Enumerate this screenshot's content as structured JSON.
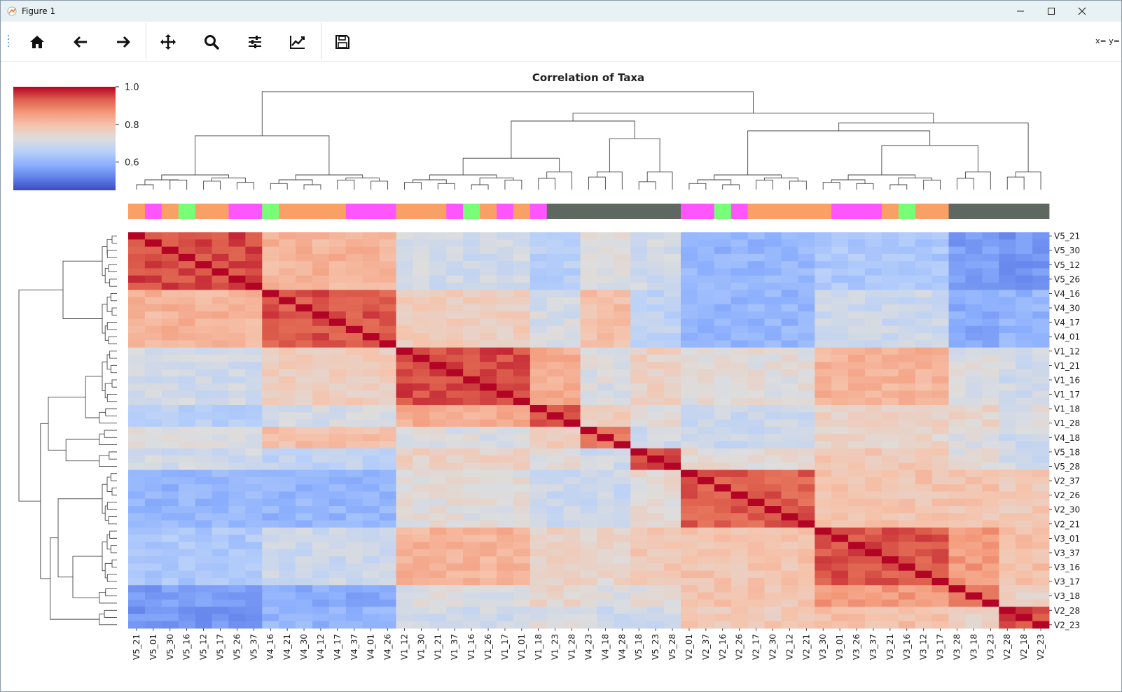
{
  "window": {
    "title": "Figure 1"
  },
  "toolbar": {
    "coord_readout": "x= y="
  },
  "icons": [
    "grip-icon",
    "home-icon",
    "back-arrow-icon",
    "forward-arrow-icon",
    "pan-icon",
    "zoom-icon",
    "configure-subplots-icon",
    "edit-axis-icon",
    "save-icon",
    "minimize-icon",
    "maximize-icon",
    "close-icon"
  ],
  "chart_data": {
    "type": "heatmap",
    "title": "Correlation of Taxa",
    "colormap": "coolwarm",
    "colorbar": {
      "ticks": [
        "1.0",
        "0.8",
        "0.6"
      ],
      "tick_values": [
        1.0,
        0.8,
        0.6
      ],
      "range": [
        0.45,
        1.0
      ]
    },
    "labels": [
      "V5_21",
      "V5_01",
      "V5_30",
      "V5_16",
      "V5_12",
      "V5_17",
      "V5_26",
      "V5_37",
      "V4_16",
      "V4_21",
      "V4_30",
      "V4_12",
      "V4_17",
      "V4_37",
      "V4_01",
      "V4_26",
      "V1_12",
      "V1_30",
      "V1_21",
      "V1_37",
      "V1_16",
      "V1_26",
      "V1_17",
      "V1_01",
      "V1_18",
      "V1_23",
      "V1_28",
      "V4_23",
      "V4_18",
      "V4_28",
      "V5_18",
      "V5_23",
      "V5_28",
      "V2_01",
      "V2_37",
      "V2_16",
      "V2_26",
      "V2_17",
      "V2_30",
      "V2_12",
      "V2_21",
      "V3_30",
      "V3_01",
      "V3_26",
      "V3_37",
      "V3_21",
      "V3_16",
      "V3_12",
      "V3_17",
      "V3_28",
      "V3_18",
      "V3_23",
      "V2_28",
      "V2_18",
      "V2_23"
    ],
    "row_tick_labels": [
      "V5_21",
      "V5_30",
      "V5_12",
      "V5_26",
      "V4_16",
      "V4_30",
      "V4_17",
      "V4_01",
      "V1_12",
      "V1_21",
      "V1_16",
      "V1_17",
      "V1_18",
      "V1_28",
      "V4_18",
      "V5_18",
      "V5_28",
      "V2_37",
      "V2_26",
      "V2_30",
      "V2_21",
      "V3_01",
      "V3_37",
      "V3_16",
      "V3_17",
      "V3_18",
      "V2_28",
      "V2_23"
    ],
    "column_color_bar": [
      "#f9a066",
      "#ff55ff",
      "#f9a066",
      "#77ff77",
      "#f9a066",
      "#f9a066",
      "#ff55ff",
      "#ff55ff",
      "#77ff77",
      "#f9a066",
      "#f9a066",
      "#f9a066",
      "#f9a066",
      "#ff55ff",
      "#ff55ff",
      "#ff55ff",
      "#f9a066",
      "#f9a066",
      "#f9a066",
      "#ff55ff",
      "#77ff77",
      "#f9a066",
      "#ff55ff",
      "#f9a066",
      "#ff55ff",
      "#5f6860",
      "#5f6860",
      "#5f6860",
      "#5f6860",
      "#5f6860",
      "#5f6860",
      "#5f6860",
      "#5f6860",
      "#ff55ff",
      "#ff55ff",
      "#77ff77",
      "#ff55ff",
      "#f9a066",
      "#f9a066",
      "#f9a066",
      "#f9a066",
      "#f9a066",
      "#ff55ff",
      "#ff55ff",
      "#ff55ff",
      "#f9a066",
      "#77ff77",
      "#f9a066",
      "#f9a066",
      "#5f6860",
      "#5f6860",
      "#5f6860",
      "#5f6860",
      "#5f6860",
      "#5f6860"
    ],
    "clusters": [
      {
        "members": "V5_21..V5_37",
        "start": 0,
        "size": 8
      },
      {
        "members": "V4_16..V4_26",
        "start": 8,
        "size": 8
      },
      {
        "members": "V1_12..V1_01",
        "start": 16,
        "size": 8
      },
      {
        "members": "V1_18..V1_28",
        "start": 24,
        "size": 3
      },
      {
        "members": "V4_23..V4_28",
        "start": 27,
        "size": 3
      },
      {
        "members": "V5_18..V5_28",
        "start": 30,
        "size": 3
      },
      {
        "members": "V2_01..V2_21",
        "start": 33,
        "size": 8
      },
      {
        "members": "V3_30..V3_17",
        "start": 41,
        "size": 8
      },
      {
        "members": "V3_28..V3_23",
        "start": 49,
        "size": 3
      },
      {
        "members": "V2_28..V2_23",
        "start": 52,
        "size": 3
      }
    ],
    "within_cluster_correlation": [
      0.95,
      0.94,
      0.95,
      0.93,
      0.9,
      0.95,
      0.93,
      0.94,
      0.9,
      0.95
    ],
    "between_cluster_correlation": [
      [
        1.0,
        0.82,
        0.7,
        0.66,
        0.72,
        0.7,
        0.6,
        0.64,
        0.56,
        0.55
      ],
      [
        0.82,
        1.0,
        0.77,
        0.71,
        0.8,
        0.67,
        0.6,
        0.69,
        0.58,
        0.6
      ],
      [
        0.7,
        0.77,
        1.0,
        0.83,
        0.72,
        0.76,
        0.73,
        0.82,
        0.72,
        0.7
      ],
      [
        0.66,
        0.71,
        0.83,
        1.0,
        0.77,
        0.73,
        0.69,
        0.76,
        0.75,
        0.72
      ],
      [
        0.72,
        0.8,
        0.72,
        0.77,
        1.0,
        0.7,
        0.69,
        0.75,
        0.72,
        0.7
      ],
      [
        0.7,
        0.67,
        0.76,
        0.73,
        0.7,
        1.0,
        0.74,
        0.78,
        0.73,
        0.7
      ],
      [
        0.6,
        0.6,
        0.73,
        0.69,
        0.69,
        0.74,
        1.0,
        0.79,
        0.79,
        0.78
      ],
      [
        0.64,
        0.69,
        0.82,
        0.76,
        0.75,
        0.78,
        0.79,
        1.0,
        0.86,
        0.8
      ],
      [
        0.56,
        0.58,
        0.72,
        0.75,
        0.72,
        0.73,
        0.79,
        0.86,
        1.0,
        0.76
      ],
      [
        0.55,
        0.6,
        0.7,
        0.72,
        0.7,
        0.7,
        0.78,
        0.8,
        0.76,
        1.0
      ]
    ]
  }
}
